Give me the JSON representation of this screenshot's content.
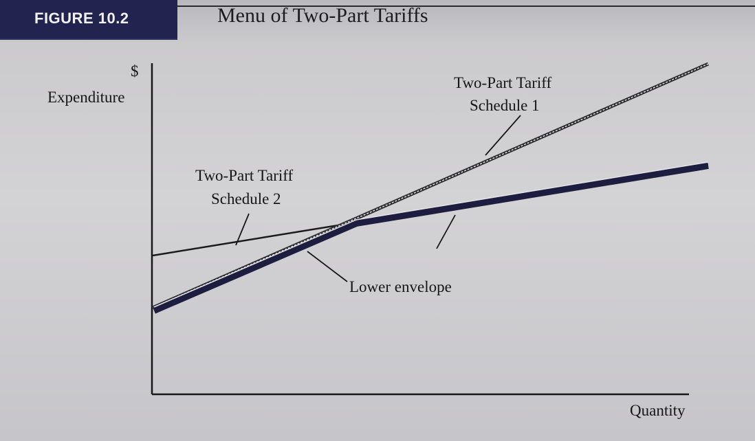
{
  "figure": {
    "label": "FIGURE 10.2",
    "title": "Menu of Two-Part Tariffs"
  },
  "axes": {
    "y_unit": "$",
    "y_label": "Expenditure",
    "x_label": "Quantity"
  },
  "labels": {
    "schedule1_line1": "Two-Part Tariff",
    "schedule1_line2": "Schedule 1",
    "schedule2_line1": "Two-Part Tariff",
    "schedule2_line2": "Schedule 2",
    "lower_envelope": "Lower envelope"
  },
  "colors": {
    "figure_label_bg": "#22244f",
    "envelope": "#1c1d3f",
    "ink": "#161619"
  }
}
